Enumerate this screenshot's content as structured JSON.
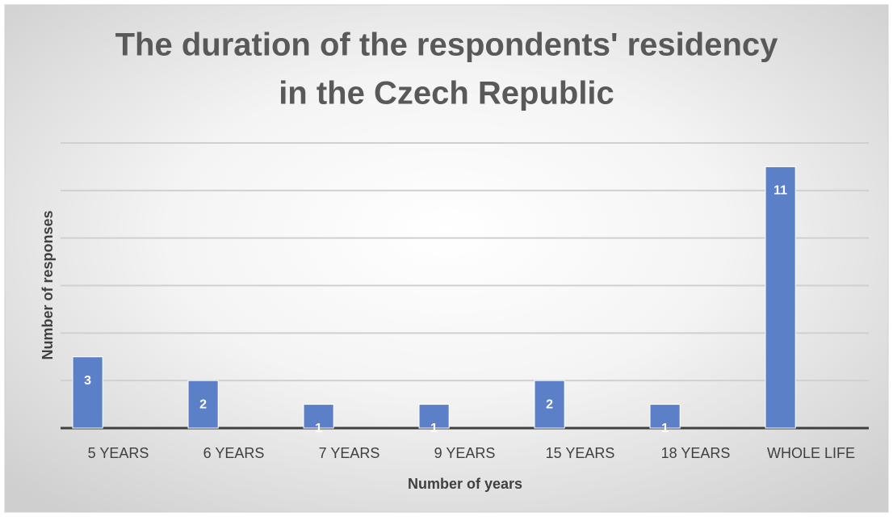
{
  "chart_data": {
    "type": "bar",
    "title": [
      "The duration of the respondents' residency",
      "in the Czech Republic"
    ],
    "x_label": "Number of years",
    "y_label": "Number of responses",
    "categories": [
      "5 YEARS",
      "6 YEARS",
      "7 YEARS",
      "9 YEARS",
      "15 YEARS",
      "18 YEARS",
      "WHOLE LIFE"
    ],
    "values": [
      3,
      2,
      1,
      1,
      2,
      1,
      11
    ],
    "color": "#5b80c8",
    "ylim": [
      0,
      12
    ],
    "yticks": [
      0,
      2,
      4,
      6,
      8,
      10,
      12
    ],
    "grid": true
  }
}
